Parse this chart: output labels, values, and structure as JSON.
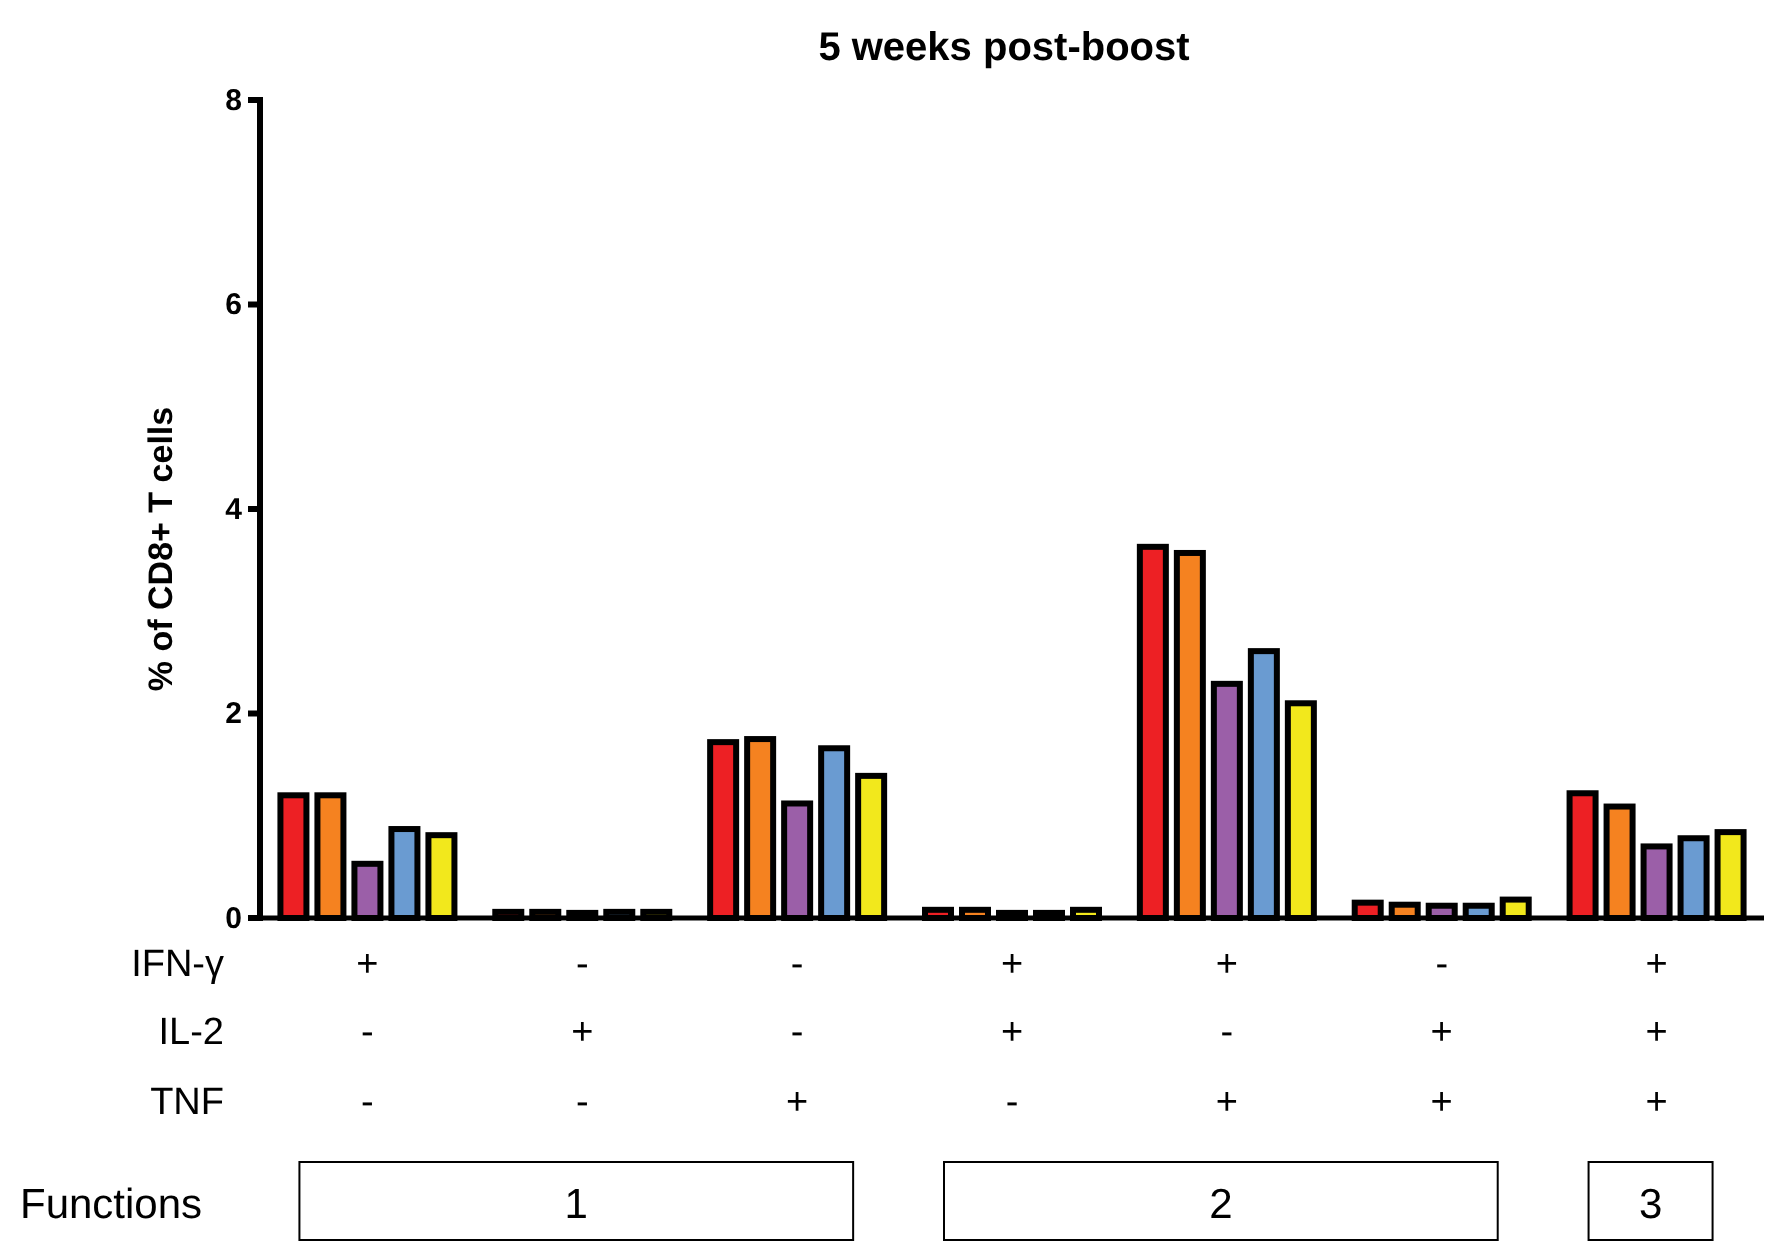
{
  "chart_data": {
    "type": "bar",
    "title": "5 weeks post-boost",
    "ylabel": "% of CD8+ T cells",
    "categories": [
      null,
      null,
      null,
      null,
      null,
      null,
      null
    ],
    "series": [
      {
        "color": "#ed2024",
        "values": [
          1.2,
          0.06,
          1.72,
          0.08,
          3.63,
          0.15,
          1.22
        ]
      },
      {
        "color": "#f58220",
        "values": [
          1.2,
          0.06,
          1.75,
          0.08,
          3.57,
          0.13,
          1.09
        ]
      },
      {
        "color": "#9b5fa8",
        "values": [
          0.53,
          0.05,
          1.12,
          0.05,
          2.29,
          0.12,
          0.7
        ]
      },
      {
        "color": "#6a9bd1",
        "values": [
          0.87,
          0.06,
          1.66,
          0.05,
          2.61,
          0.12,
          0.78
        ]
      },
      {
        "color": "#f2e81c",
        "values": [
          0.81,
          0.06,
          1.39,
          0.08,
          2.1,
          0.18,
          0.84
        ]
      }
    ],
    "ylim": [
      0,
      8
    ],
    "yticks": [
      0,
      2,
      4,
      6,
      8
    ],
    "grid": false,
    "annotations": [
      "IFN-γ",
      "+",
      "-",
      "-",
      "+",
      "+",
      "-",
      "+",
      "IL-2",
      "-",
      "+",
      "-",
      "+",
      "-",
      "+",
      "+",
      "TNF",
      "-",
      "-",
      "+",
      "-",
      "+",
      "+",
      "+",
      "Functions",
      "1",
      "2",
      "3"
    ]
  }
}
